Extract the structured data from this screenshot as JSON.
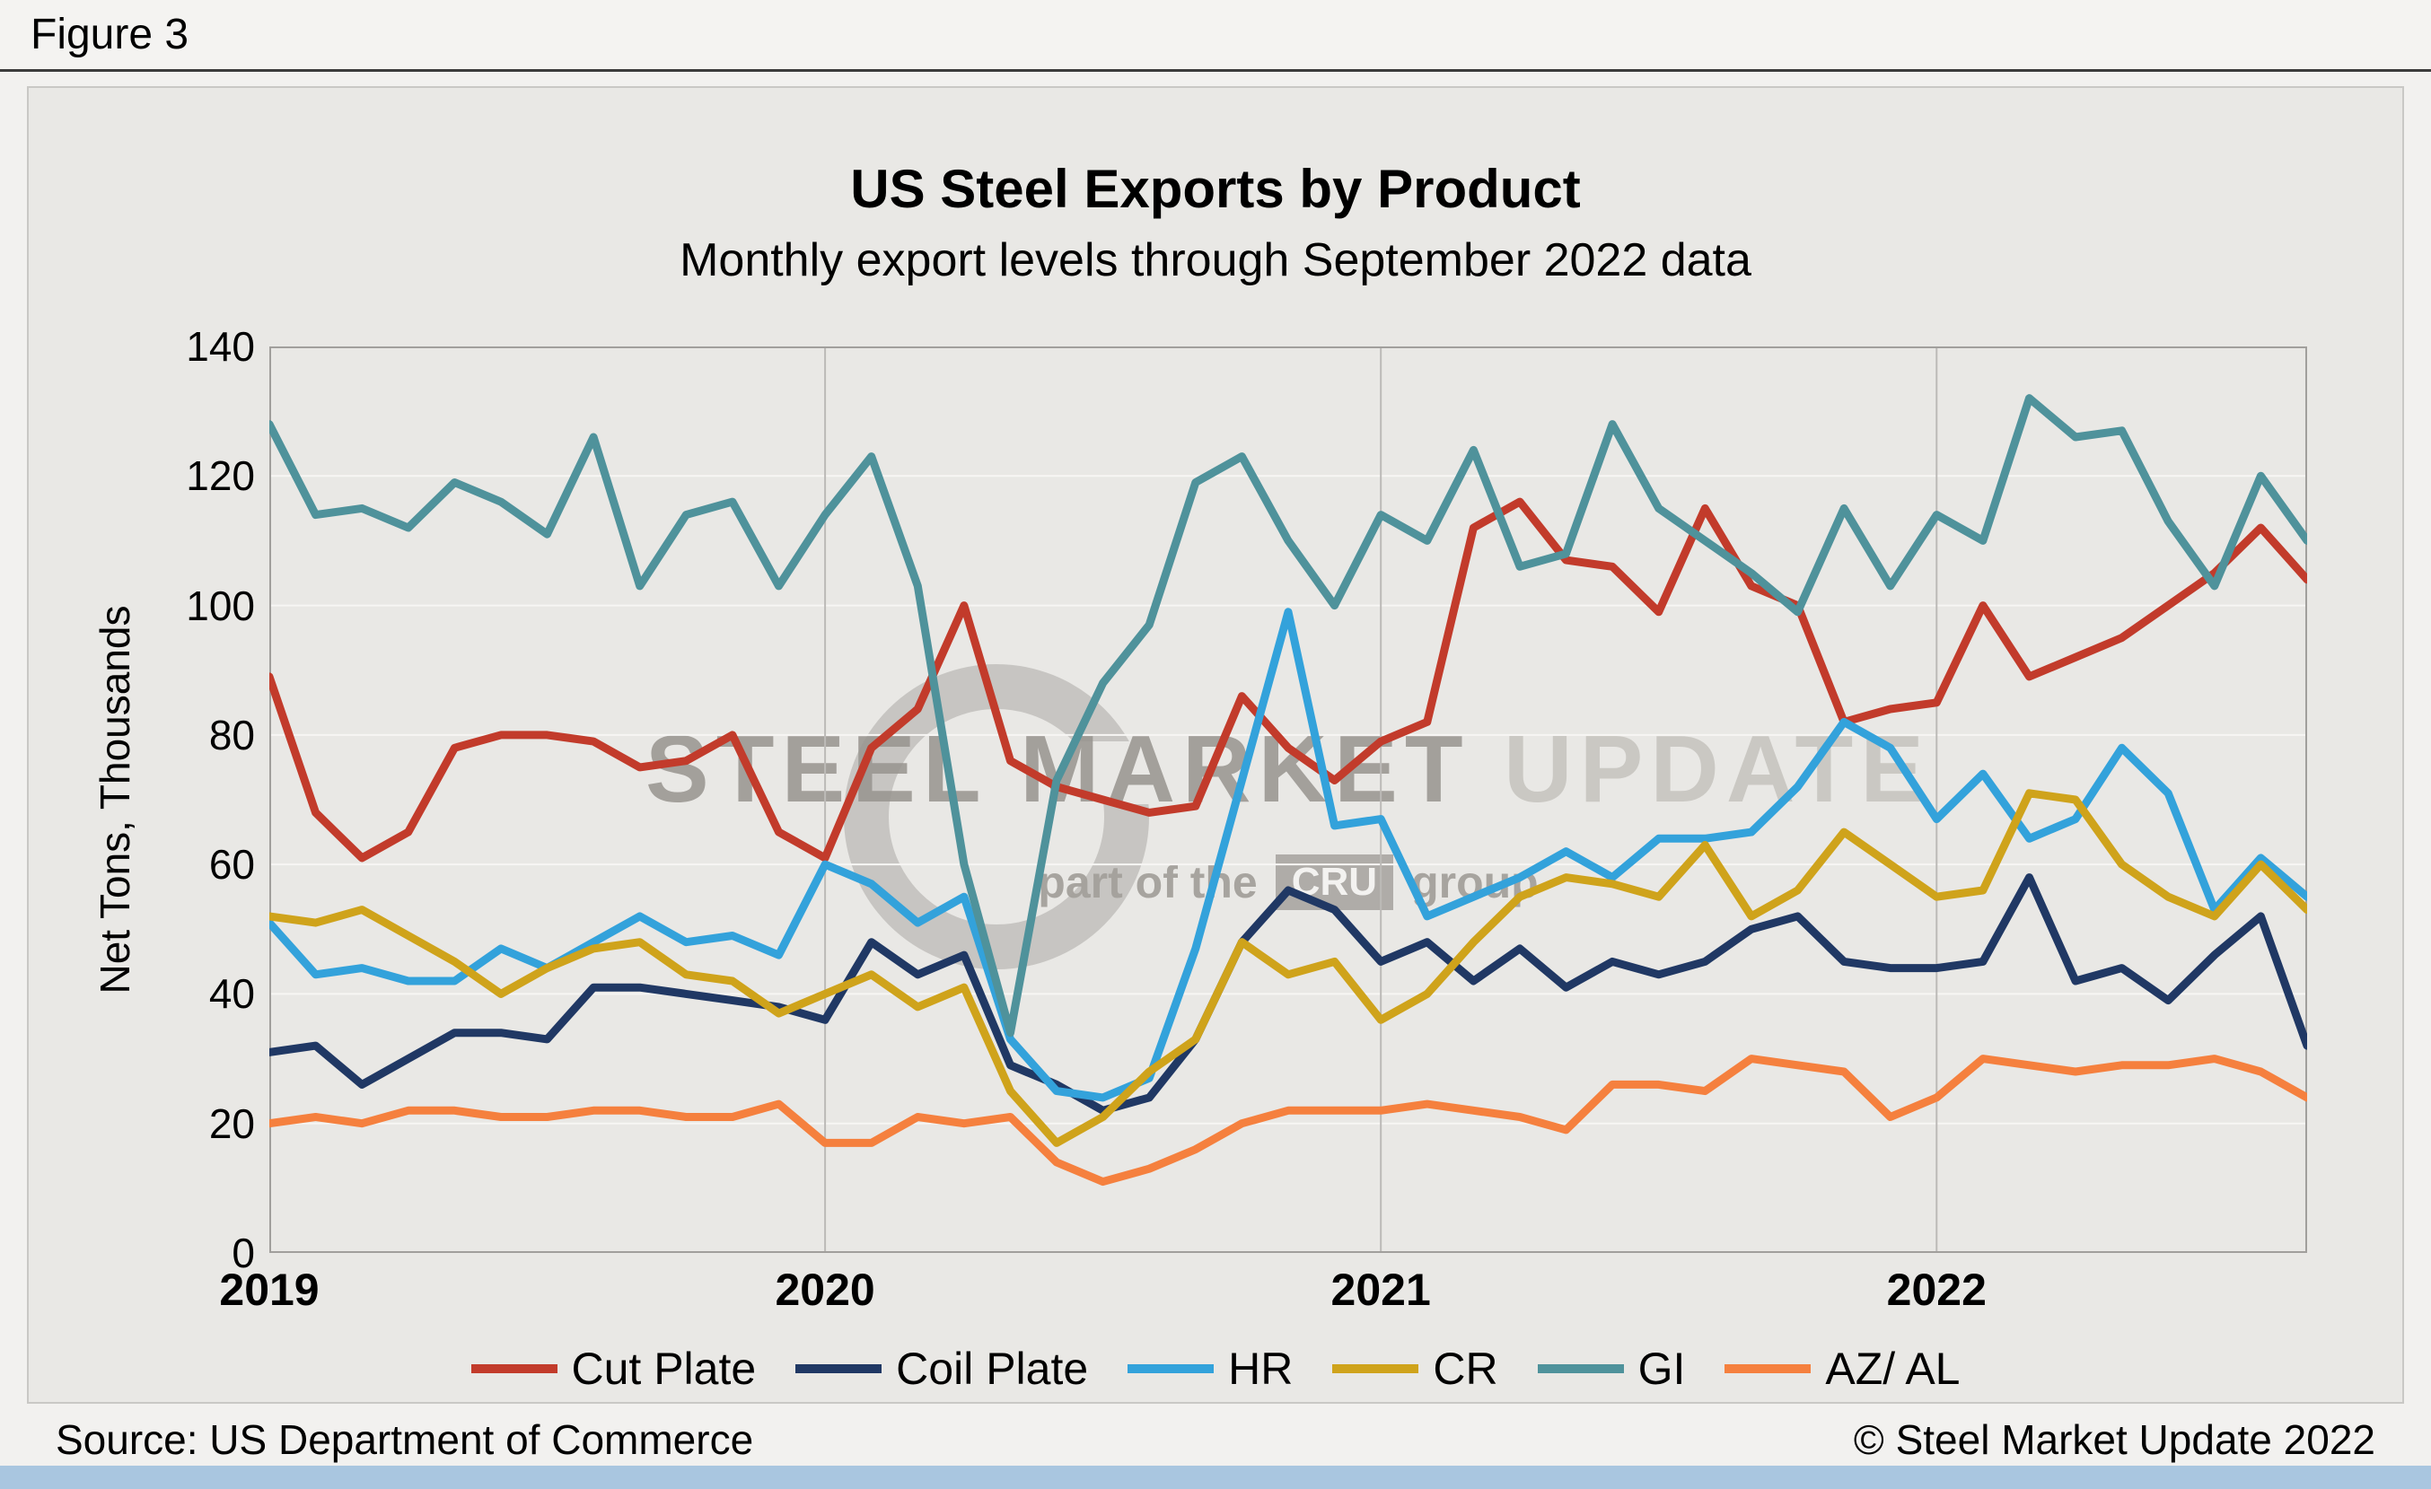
{
  "figure_label": "Figure 3",
  "title": "US Steel Exports by Product",
  "subtitle": "Monthly export levels through September 2022 data",
  "y_axis_label": "Net Tons, Thousands",
  "footer": {
    "source": "Source: US Department of Commerce",
    "copyright": "© Steel Market Update 2022"
  },
  "watermark": {
    "line1_strong": "STEEL MARKET",
    "line1_light": "UPDATE",
    "line2_pre": "part of the",
    "line2_box": "CRU",
    "line2_post": "group"
  },
  "colors": {
    "panel_bg": "#e9e8e5",
    "grid_horizontal": "#f7f6f4",
    "grid_vertical": "#bcbab7",
    "plot_border": "#a19f9c",
    "accent_strip": "#a9c6e0"
  },
  "chart_data": {
    "type": "line",
    "x_start": "2019-01",
    "x_end": "2022-09",
    "months_total": 45,
    "x_unit": "month",
    "year_ticks": [
      {
        "label": "2019",
        "month_index": 0
      },
      {
        "label": "2020",
        "month_index": 12
      },
      {
        "label": "2021",
        "month_index": 24
      },
      {
        "label": "2022",
        "month_index": 36
      }
    ],
    "ylim": [
      0,
      140
    ],
    "y_ticks": [
      0,
      20,
      40,
      60,
      80,
      100,
      120,
      140
    ],
    "grid": true,
    "legend_position": "bottom",
    "series": [
      {
        "name": "Cut Plate",
        "color": "#C23B2B",
        "values": [
          89,
          68,
          61,
          65,
          78,
          80,
          80,
          79,
          75,
          76,
          80,
          65,
          61,
          78,
          84,
          100,
          76,
          72,
          70,
          68,
          69,
          86,
          78,
          73,
          79,
          82,
          112,
          116,
          107,
          106,
          99,
          115,
          103,
          100,
          82,
          84,
          85,
          100,
          89,
          92,
          95,
          100,
          105,
          112,
          104
        ]
      },
      {
        "name": "Coil Plate",
        "color": "#203864",
        "values": [
          31,
          32,
          26,
          30,
          34,
          34,
          33,
          41,
          41,
          40,
          39,
          38,
          36,
          48,
          43,
          46,
          29,
          26,
          22,
          24,
          33,
          48,
          56,
          53,
          45,
          48,
          42,
          47,
          41,
          45,
          43,
          45,
          50,
          52,
          45,
          44,
          44,
          45,
          58,
          42,
          44,
          39,
          46,
          52,
          32
        ]
      },
      {
        "name": "HR",
        "color": "#33A2DB",
        "values": [
          51,
          43,
          44,
          42,
          42,
          47,
          44,
          48,
          52,
          48,
          49,
          46,
          60,
          57,
          51,
          55,
          33,
          25,
          24,
          27,
          47,
          73,
          99,
          66,
          67,
          52,
          55,
          58,
          62,
          58,
          64,
          64,
          65,
          72,
          82,
          78,
          67,
          74,
          64,
          67,
          78,
          71,
          53,
          61,
          55
        ]
      },
      {
        "name": "CR",
        "color": "#CFA31B",
        "values": [
          52,
          51,
          53,
          49,
          45,
          40,
          44,
          47,
          48,
          43,
          42,
          37,
          40,
          43,
          38,
          41,
          25,
          17,
          21,
          28,
          33,
          48,
          43,
          45,
          36,
          40,
          48,
          55,
          58,
          57,
          55,
          63,
          52,
          56,
          65,
          60,
          55,
          56,
          71,
          70,
          60,
          55,
          52,
          60,
          53
        ]
      },
      {
        "name": "GI",
        "color": "#4F929B",
        "values": [
          128,
          114,
          115,
          112,
          119,
          116,
          111,
          126,
          103,
          114,
          116,
          103,
          114,
          123,
          103,
          60,
          34,
          73,
          88,
          97,
          119,
          123,
          110,
          100,
          114,
          110,
          124,
          106,
          108,
          128,
          115,
          110,
          105,
          99,
          115,
          103,
          114,
          110,
          132,
          126,
          127,
          113,
          103,
          120,
          110
        ]
      },
      {
        "name": "AZ/ AL",
        "color": "#F5803E",
        "values": [
          20,
          21,
          20,
          22,
          22,
          21,
          21,
          22,
          22,
          21,
          21,
          23,
          17,
          17,
          21,
          20,
          21,
          14,
          11,
          13,
          16,
          20,
          22,
          22,
          22,
          23,
          22,
          21,
          19,
          26,
          26,
          25,
          30,
          29,
          28,
          21,
          24,
          30,
          29,
          28,
          29,
          29,
          30,
          28,
          24
        ]
      }
    ]
  }
}
